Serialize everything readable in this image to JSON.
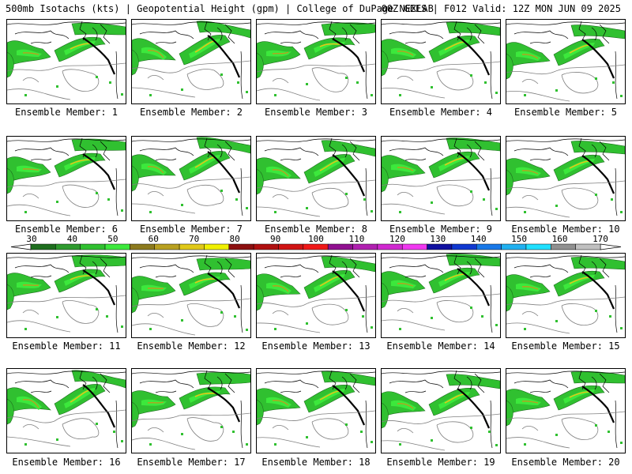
{
  "header": {
    "left": "500mb Isotachs (kts) | Geopotential Height (gpm) | College of DuPage NEXLAB",
    "right": "00Z GEFS | F012 Valid: 12Z MON JUN 09 2025"
  },
  "panels": [
    {
      "caption": "Ensemble Member: 1"
    },
    {
      "caption": "Ensemble Member: 2"
    },
    {
      "caption": "Ensemble Member: 3"
    },
    {
      "caption": "Ensemble Member: 4"
    },
    {
      "caption": "Ensemble Member: 5"
    },
    {
      "caption": "Ensemble Member: 6"
    },
    {
      "caption": "Ensemble Member: 7"
    },
    {
      "caption": "Ensemble Member: 8"
    },
    {
      "caption": "Ensemble Member: 9"
    },
    {
      "caption": "Ensemble Member: 10"
    },
    {
      "caption": "Ensemble Member: 11"
    },
    {
      "caption": "Ensemble Member: 12"
    },
    {
      "caption": "Ensemble Member: 13"
    },
    {
      "caption": "Ensemble Member: 14"
    },
    {
      "caption": "Ensemble Member: 15"
    },
    {
      "caption": "Ensemble Member: 16"
    },
    {
      "caption": "Ensemble Member: 17"
    },
    {
      "caption": "Ensemble Member: 18"
    },
    {
      "caption": "Ensemble Member: 19"
    },
    {
      "caption": "Ensemble Member: 20"
    }
  ],
  "colorbar": {
    "units": "kts",
    "labels": [
      "30",
      "40",
      "50",
      "60",
      "70",
      "80",
      "90",
      "100",
      "110",
      "120",
      "130",
      "140",
      "150",
      "160",
      "170"
    ],
    "colors": [
      "#1e6e1e",
      "#2e9a2e",
      "#30c030",
      "#3ce83c",
      "#8c7a1e",
      "#b8a020",
      "#e0c818",
      "#f0f000",
      "#8c1010",
      "#b01010",
      "#d01414",
      "#f01818",
      "#901090",
      "#b020b0",
      "#d028d0",
      "#f038f0",
      "#1010a0",
      "#1038d0",
      "#1878e8",
      "#20b0f0",
      "#20e0ff",
      "#909090",
      "#c0c0c0"
    ]
  }
}
